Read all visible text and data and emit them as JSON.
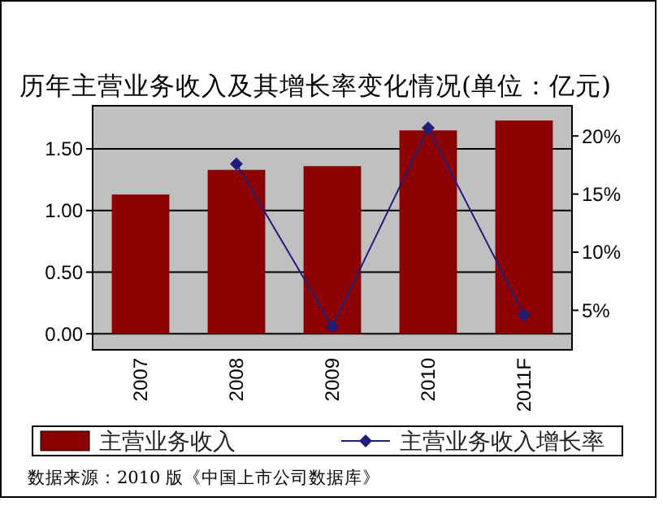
{
  "chart_data": {
    "type": "bar",
    "title": "历年主营业务收入及其增长率变化情况(单位：亿元)",
    "categories": [
      "2007",
      "2008",
      "2009",
      "2010",
      "2011F"
    ],
    "series": [
      {
        "name": "主营业务收入",
        "color": "#8b0000",
        "values": [
          1.13,
          1.33,
          1.36,
          1.65,
          1.73
        ]
      },
      {
        "name": "主营业务收入增长率",
        "type": "line",
        "axis": "y2",
        "color": "#1f1f7a",
        "values": [
          null,
          17.6,
          3.6,
          20.7,
          4.6
        ]
      }
    ],
    "ylim": [
      -0.13,
      1.85
    ],
    "yticks": [
      {
        "value": 0,
        "label": "0.00"
      },
      {
        "value": 0.5,
        "label": "0.50"
      },
      {
        "value": 1,
        "label": "1.00"
      },
      {
        "value": 1.5,
        "label": "1.50"
      }
    ],
    "y2lim": [
      1.6,
      22.6
    ],
    "y2ticks": [
      {
        "value": 5,
        "label": "5%"
      },
      {
        "value": 10,
        "label": "10%"
      },
      {
        "value": 15,
        "label": "15%"
      },
      {
        "value": 20,
        "label": "20%"
      }
    ],
    "grid": "y",
    "legend": "bottom",
    "marker": "diamond",
    "annotations": [
      "数据来源：2010 版《中国上市公司数据库》"
    ]
  }
}
